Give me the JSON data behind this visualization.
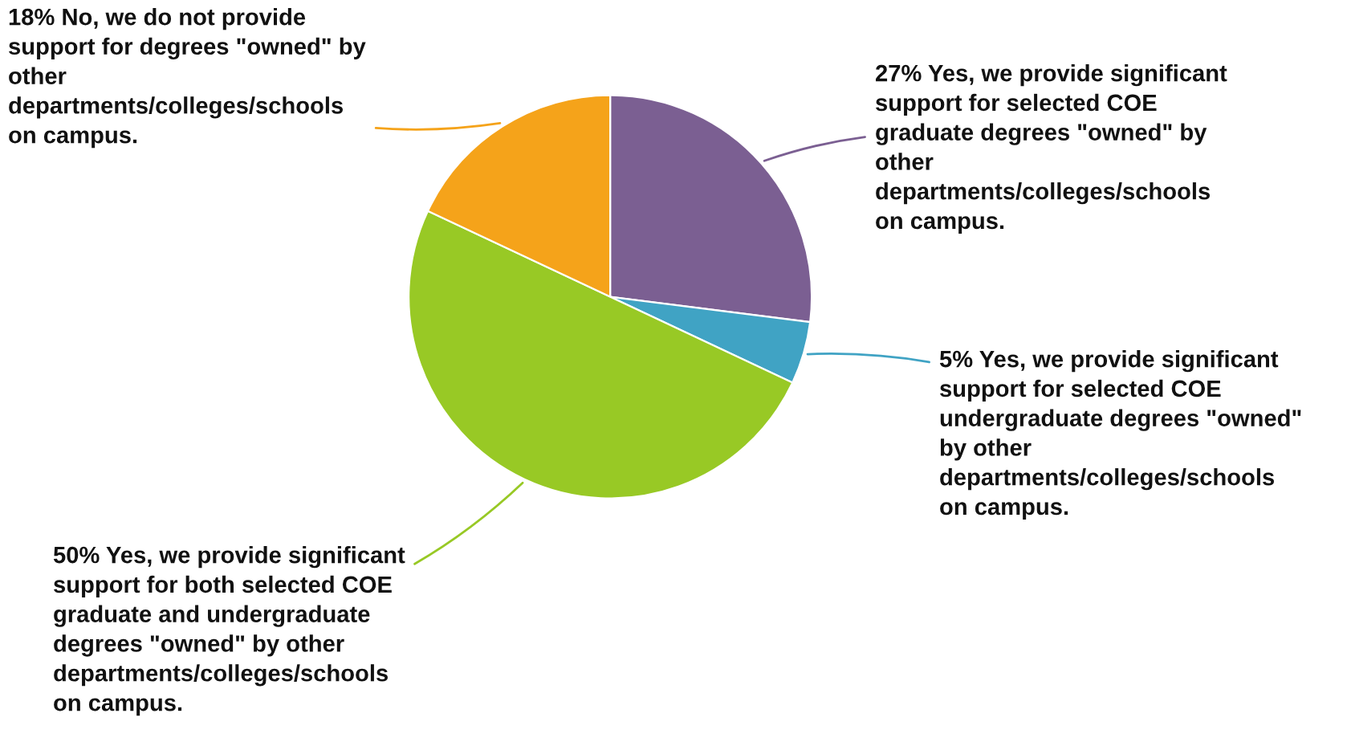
{
  "chart_data": {
    "type": "pie",
    "categories": [
      "Yes, we provide significant\nsupport for selected COE\ngraduate degrees \"owned\" by\nother\ndepartments/colleges/schools\non campus.",
      "Yes, we provide significant\nsupport for selected COE\nundergraduate degrees \"owned\"\nby other\ndepartments/colleges/schools\non campus.",
      "Yes, we provide significant\nsupport for both selected COE\ngraduate and undergraduate\ndegrees \"owned\" by other\ndepartments/colleges/schools\non campus.",
      "No, we do not provide\nsupport for degrees \"owned\" by\nother\ndepartments/colleges/schools\non campus."
    ],
    "values": [
      27,
      5,
      50,
      18
    ],
    "value_labels": [
      "27%",
      "5%",
      "50%",
      "18%"
    ],
    "colors": [
      "#7b5f92",
      "#40a3c4",
      "#98c925",
      "#f5a31a"
    ],
    "legend": false
  }
}
